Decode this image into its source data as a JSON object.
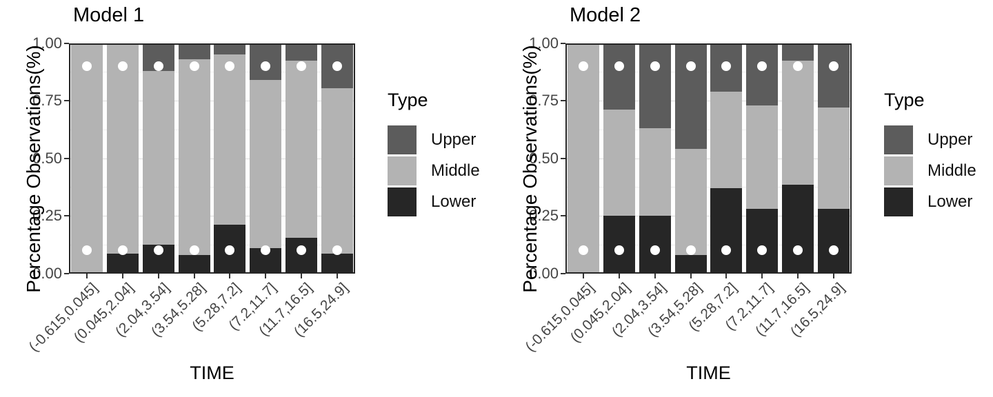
{
  "figure": {
    "y_tick_labels": [
      "1.00",
      "0.75",
      "0.50",
      "0.25",
      "0.00"
    ],
    "y_tick_values": [
      1,
      0.75,
      0.5,
      0.25,
      0
    ],
    "grid_major": [
      0.25,
      0.5,
      0.75
    ],
    "grid_minor": [
      0.125,
      0.375,
      0.625,
      0.875
    ],
    "colors": {
      "lower": "#262626",
      "middle": "#b3b3b3",
      "upper": "#5c5c5c",
      "dot": "#ffffff"
    },
    "legend_items": [
      {
        "label": "Upper",
        "color": "#5c5c5c"
      },
      {
        "label": "Middle",
        "color": "#b3b3b3"
      },
      {
        "label": "Lower",
        "color": "#262626"
      }
    ]
  },
  "chart_data": [
    {
      "type": "bar",
      "stacked": true,
      "title": "Model 1",
      "xlabel": "TIME",
      "ylabel": "Percentage Observations(%)",
      "ylim": [
        0,
        1
      ],
      "grid": true,
      "categories": [
        "(-0.615,0.045]",
        "(0.045,2.04]",
        "(2.04,3.54]",
        "(3.54,5.28]",
        "(5.28,7.2]",
        "(7.2,11.7]",
        "(11.7,16.5]",
        "(16.5,24.9]"
      ],
      "series": [
        {
          "name": "Lower",
          "color": "#262626",
          "values": [
            0,
            0.085,
            0.125,
            0.08,
            0.21,
            0.11,
            0.155,
            0.085
          ]
        },
        {
          "name": "Middle",
          "color": "#b3b3b3",
          "values": [
            1.0,
            0.915,
            0.755,
            0.85,
            0.74,
            0.73,
            0.77,
            0.72
          ]
        },
        {
          "name": "Upper",
          "color": "#5c5c5c",
          "values": [
            0,
            0,
            0.12,
            0.07,
            0.05,
            0.16,
            0.075,
            0.195
          ]
        }
      ],
      "point_overlay": {
        "y": [
          0.9,
          0.1
        ],
        "color": "#ffffff"
      },
      "legend": {
        "title": "Type",
        "position": "right",
        "entries": [
          "Upper",
          "Middle",
          "Lower"
        ]
      }
    },
    {
      "type": "bar",
      "stacked": true,
      "title": "Model 2",
      "xlabel": "TIME",
      "ylabel": "Percentage Observations(%)",
      "ylim": [
        0,
        1
      ],
      "grid": true,
      "categories": [
        "(-0.615,0.045]",
        "(0.045,2.04]",
        "(2.04,3.54]",
        "(3.54,5.28]",
        "(5.28,7.2]",
        "(7.2,11.7]",
        "(11.7,16.5]",
        "(16.5,24.9]"
      ],
      "series": [
        {
          "name": "Lower",
          "color": "#262626",
          "values": [
            0,
            0.25,
            0.25,
            0.08,
            0.37,
            0.28,
            0.385,
            0.28
          ]
        },
        {
          "name": "Middle",
          "color": "#b3b3b3",
          "values": [
            1.0,
            0.46,
            0.38,
            0.46,
            0.42,
            0.45,
            0.54,
            0.44
          ]
        },
        {
          "name": "Upper",
          "color": "#5c5c5c",
          "values": [
            0,
            0.29,
            0.37,
            0.46,
            0.21,
            0.27,
            0.075,
            0.28
          ]
        }
      ],
      "point_overlay": {
        "y": [
          0.9,
          0.1
        ],
        "color": "#ffffff"
      },
      "legend": {
        "title": "Type",
        "position": "right",
        "entries": [
          "Upper",
          "Middle",
          "Lower"
        ]
      }
    }
  ]
}
